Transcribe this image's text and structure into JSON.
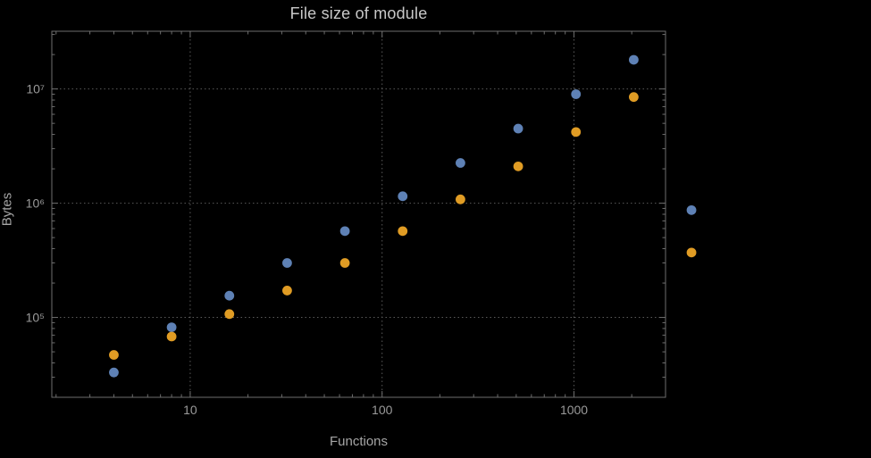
{
  "chart_data": {
    "type": "scatter",
    "scale": "log-log",
    "title": "File size of module",
    "xlabel": "Functions",
    "ylabel": "Bytes",
    "grid": true,
    "legend": false,
    "xlim": [
      1.9,
      3000
    ],
    "ylim": [
      20000,
      32000000
    ],
    "x": [
      4,
      8,
      16,
      32,
      64,
      128,
      256,
      512,
      1024,
      2048,
      4096
    ],
    "series": [
      {
        "name": "series-blue",
        "color": "#5e81b5",
        "values": [
          33000,
          82000,
          155000,
          300000,
          570000,
          1150000,
          2250000,
          4500000,
          9000000,
          18000000,
          870000
        ]
      },
      {
        "name": "series-orange",
        "color": "#e09c24",
        "values": [
          47000,
          68000,
          107000,
          172000,
          300000,
          570000,
          1080000,
          2100000,
          4200000,
          8500000,
          370000
        ]
      }
    ],
    "x_ticks": [
      {
        "value": 10,
        "label": "10"
      },
      {
        "value": 100,
        "label": "100"
      },
      {
        "value": 1000,
        "label": "1000"
      }
    ],
    "y_ticks": [
      {
        "value": 100000,
        "label": "10⁵"
      },
      {
        "value": 1000000,
        "label": "10⁶"
      },
      {
        "value": 10000000,
        "label": "10⁷"
      }
    ],
    "colors": {
      "frame": "#6e6e6e",
      "grid": "#5a5a5a",
      "tick_text": "#9a9a9a",
      "title_text": "#c8c8c8",
      "label_text": "#a6a6a6"
    }
  }
}
